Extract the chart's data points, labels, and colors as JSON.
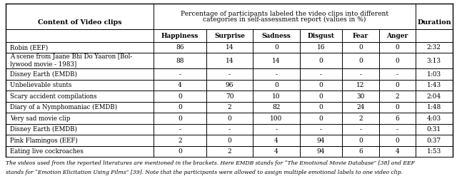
{
  "title_row1": "Percentage of participants labeled the video clips into different",
  "title_row2": "categories in self-assessment report (values in %)",
  "content_header": "Content of Video clips",
  "duration_header": "Duration",
  "sub_headers": [
    "Happiness",
    "Surprise",
    "Sadness",
    "Disgust",
    "Fear",
    "Anger"
  ],
  "rows": [
    [
      "Robin (EEF)",
      "86",
      "14",
      "0",
      "16",
      "0",
      "0",
      "2:32"
    ],
    [
      "A scene from Jaane Bhi Do Yaaron [Bol-\nlywood movie - 1983]",
      "88",
      "14",
      "14",
      "0",
      "0",
      "0",
      "3:13"
    ],
    [
      "Disney Earth (EMDB)",
      "-",
      "-",
      "-",
      "-",
      "-",
      "-",
      "1:03"
    ],
    [
      "Unbelievable stunts",
      "4",
      "96",
      "0",
      "0",
      "12",
      "0",
      "1:43"
    ],
    [
      "Scary accident compilations",
      "0",
      "70",
      "10",
      "0",
      "30",
      "2",
      "2:04"
    ],
    [
      "Diary of a Nymphomaniac (EMDB)",
      "0",
      "2",
      "82",
      "0",
      "24",
      "0",
      "1:48"
    ],
    [
      "Very sad movie clip",
      "0",
      "0",
      "100",
      "0",
      "2",
      "6",
      "4:03"
    ],
    [
      "Disney Earth (EMDB)",
      "-",
      "-",
      "-",
      "-",
      "-",
      "-",
      "0:31"
    ],
    [
      "Pink Flamingos (EEF)",
      "2",
      "0",
      "4",
      "94",
      "0",
      "0",
      "0:37"
    ],
    [
      "Eating live cockroaches",
      "0",
      "2",
      "4",
      "94",
      "6",
      "4",
      "1:53"
    ]
  ],
  "footnote1": "The videos used from the reported literatures are mentioned in the brackets. Here EMDB stands for “The Emotional Movie Database” [38] and EEF",
  "footnote2": "stands for “Emotion Elicitation Using Films” [39]. Note that the participants were allowed to assign multiple emotional labels to one video clip.",
  "bg_color": "#ffffff",
  "line_color": "#000000",
  "text_color": "#000000"
}
